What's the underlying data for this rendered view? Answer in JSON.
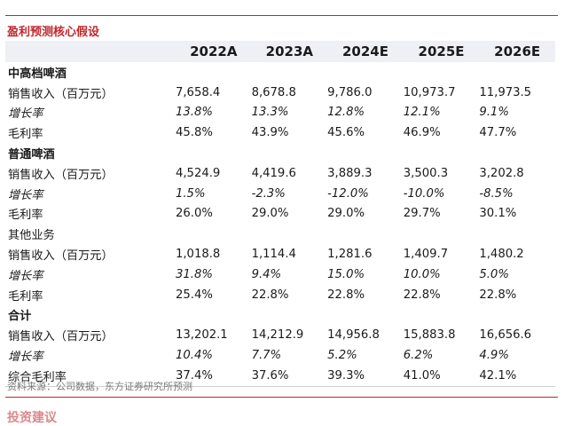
{
  "title": "盈利预测核心假设",
  "headers": [
    "",
    "2022A",
    "2023A",
    "2024E",
    "2025E",
    "2026E"
  ],
  "rows": [
    {
      "label": "中高档啤酒",
      "values": [
        "",
        "",
        "",
        "",
        ""
      ],
      "style": "section"
    },
    {
      "label": "销售收入（百万元）",
      "values": [
        "7,658.4",
        "8,678.8",
        "9,786.0",
        "10,973.7",
        "11,973.5"
      ],
      "style": "normal"
    },
    {
      "label": "增长率",
      "values": [
        "13.8%",
        "13.3%",
        "12.8%",
        "12.1%",
        "9.1%"
      ],
      "style": "italic"
    },
    {
      "label": "毛利率",
      "values": [
        "45.8%",
        "43.9%",
        "45.6%",
        "46.9%",
        "47.7%"
      ],
      "style": "normal"
    },
    {
      "label": "普通啤酒",
      "values": [
        "",
        "",
        "",
        "",
        ""
      ],
      "style": "section"
    },
    {
      "label": "销售收入（百万元）",
      "values": [
        "4,524.9",
        "4,419.6",
        "3,889.3",
        "3,500.3",
        "3,202.8"
      ],
      "style": "normal"
    },
    {
      "label": "增长率",
      "values": [
        "1.5%",
        "-2.3%",
        "-12.0%",
        "-10.0%",
        "-8.5%"
      ],
      "style": "italic"
    },
    {
      "label": "毛利率",
      "values": [
        "26.0%",
        "29.0%",
        "29.0%",
        "29.7%",
        "30.1%"
      ],
      "style": "normal"
    },
    {
      "label": "其他业务",
      "values": [
        "",
        "",
        "",
        "",
        ""
      ],
      "style": "normal"
    },
    {
      "label": "销售收入（百万元）",
      "values": [
        "1,018.8",
        "1,114.4",
        "1,281.6",
        "1,409.7",
        "1,480.2"
      ],
      "style": "normal"
    },
    {
      "label": "增长率",
      "values": [
        "31.8%",
        "9.4%",
        "15.0%",
        "10.0%",
        "5.0%"
      ],
      "style": "italic"
    },
    {
      "label": "毛利率",
      "values": [
        "25.4%",
        "22.8%",
        "22.8%",
        "22.8%",
        "22.8%"
      ],
      "style": "normal"
    },
    {
      "label": "合计",
      "values": [
        "",
        "",
        "",
        "",
        ""
      ],
      "style": "section"
    },
    {
      "label": "销售收入（百万元）",
      "values": [
        "13,202.1",
        "14,212.9",
        "14,956.8",
        "15,883.8",
        "16,656.6"
      ],
      "style": "normal"
    },
    {
      "label": "增长率",
      "values": [
        "10.4%",
        "7.7%",
        "5.2%",
        "6.2%",
        "4.9%"
      ],
      "style": "italic"
    },
    {
      "label": "综合毛利率",
      "values": [
        "37.4%",
        "37.6%",
        "39.3%",
        "41.0%",
        "42.1%"
      ],
      "style": "normal"
    }
  ],
  "source": "资料来源：公司数据，东方证券研究所预测",
  "cut_text": "投资建议"
}
